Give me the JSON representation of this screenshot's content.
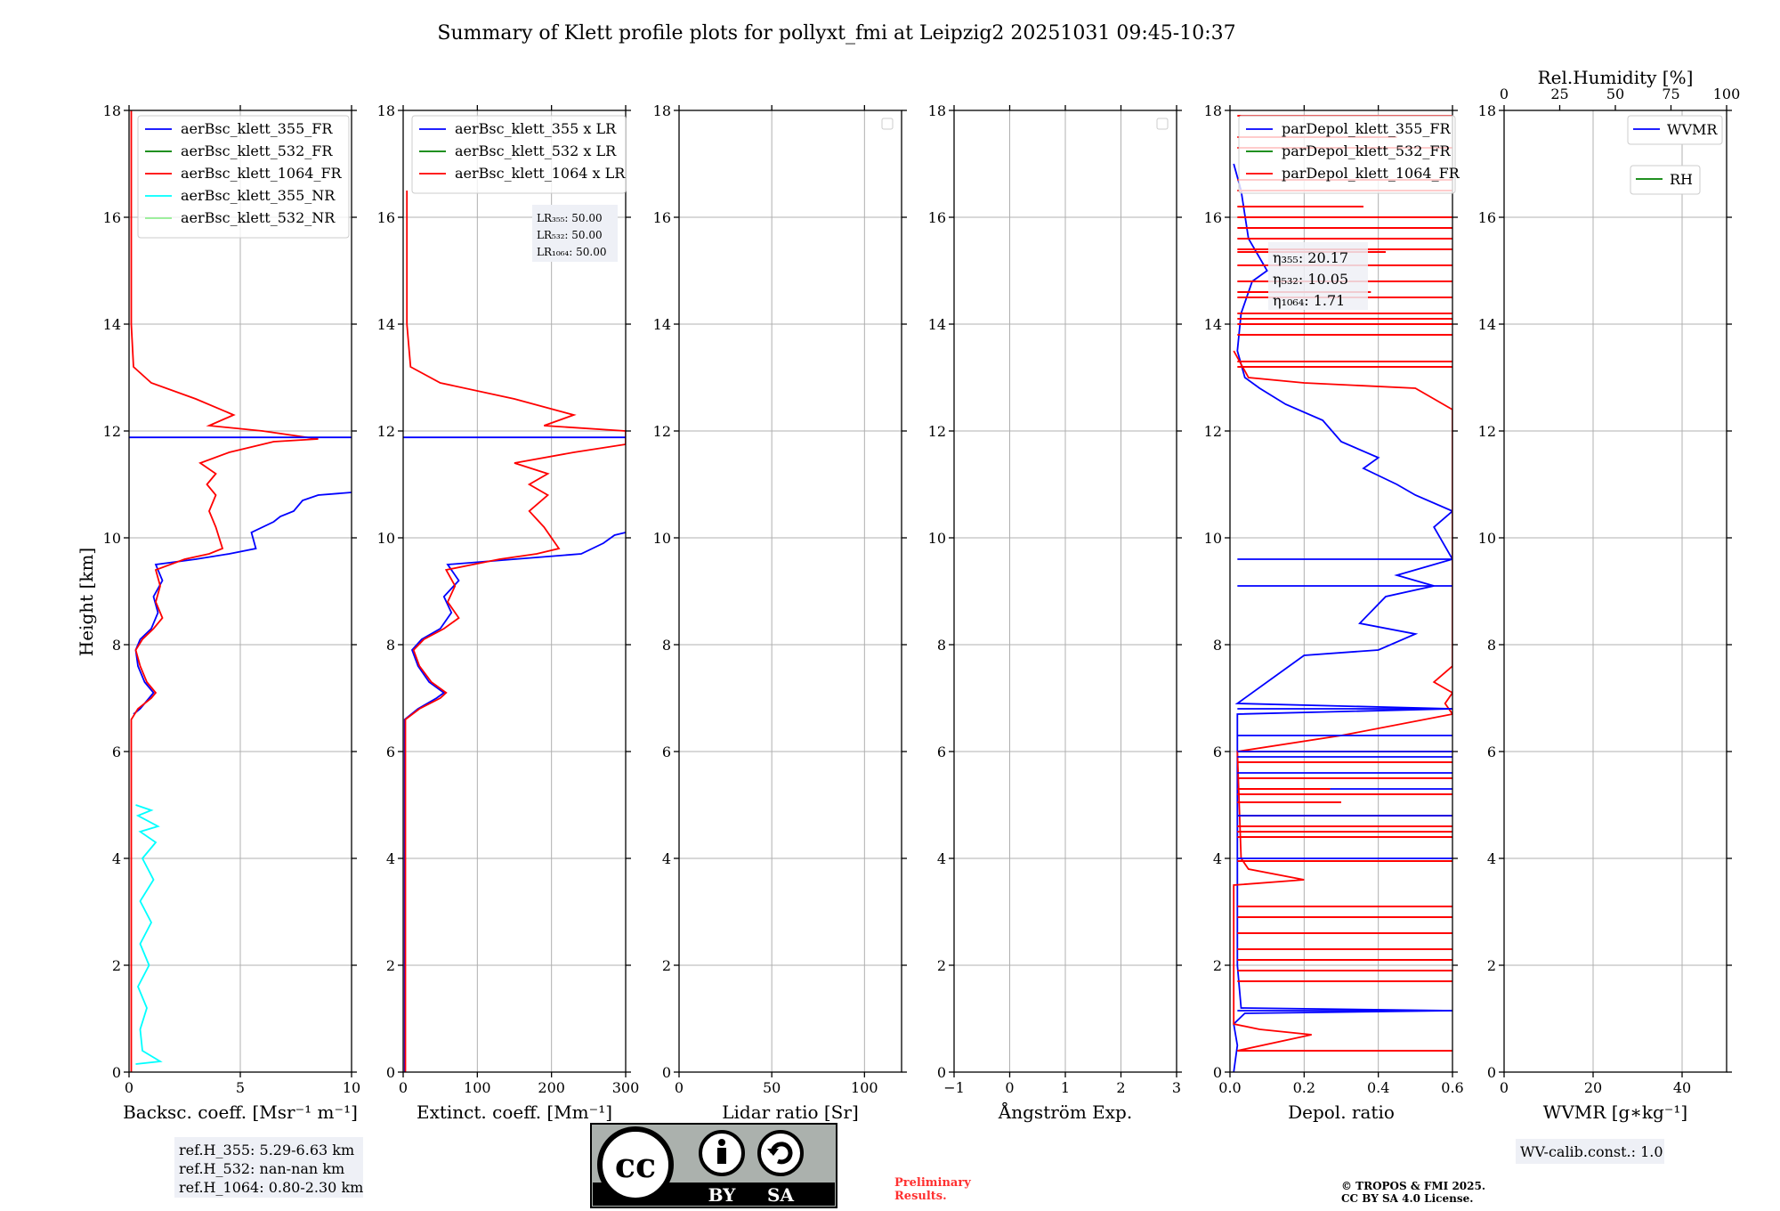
{
  "title": "Summary of Klett profile plots for pollyxt_fmi at Leipzig2 20251031 09:45-10:37",
  "ylabel": "Height [km]",
  "colors": {
    "blue": "#0000ff",
    "green": "#008000",
    "red": "#ff0000",
    "cyan": "#00ffff",
    "lightgreen": "#90ee90"
  },
  "chart_data": [
    {
      "type": "line",
      "id": "bsc",
      "xlabel": "Backsc. coeff. [Msr⁻¹ m⁻¹]",
      "xlim": [
        0,
        10
      ],
      "ylim": [
        0,
        18
      ],
      "xticks": [
        0,
        5,
        10
      ],
      "yticks": [
        0,
        2,
        4,
        6,
        8,
        10,
        12,
        14,
        16,
        18
      ],
      "legend": [
        "aerBsc_klett_355_FR",
        "aerBsc_klett_532_FR",
        "aerBsc_klett_1064_FR",
        "aerBsc_klett_355_NR",
        "aerBsc_klett_532_NR"
      ],
      "legend_colors": [
        "blue",
        "green",
        "red",
        "cyan",
        "lightgreen"
      ],
      "series": [
        {
          "name": "aerBsc_klett_355_FR",
          "color": "blue",
          "points": [
            [
              0.2,
              6.7
            ],
            [
              0.5,
              6.8
            ],
            [
              0.9,
              7.0
            ],
            [
              1.1,
              7.1
            ],
            [
              0.7,
              7.3
            ],
            [
              0.4,
              7.6
            ],
            [
              0.3,
              7.9
            ],
            [
              0.5,
              8.1
            ],
            [
              1.0,
              8.3
            ],
            [
              1.3,
              8.6
            ],
            [
              1.1,
              8.9
            ],
            [
              1.5,
              9.2
            ],
            [
              1.2,
              9.5
            ],
            [
              3.0,
              9.6
            ],
            [
              4.5,
              9.7
            ],
            [
              5.7,
              9.8
            ],
            [
              5.5,
              10.1
            ],
            [
              6.5,
              10.3
            ],
            [
              6.8,
              10.4
            ],
            [
              7.4,
              10.5
            ],
            [
              7.8,
              10.7
            ],
            [
              8.5,
              10.8
            ],
            [
              10,
              10.85
            ]
          ]
        },
        {
          "name": "aerBsc_klett_1064_FR",
          "color": "red",
          "points": [
            [
              0.1,
              0.0
            ],
            [
              0.1,
              6.6
            ],
            [
              0.4,
              6.8
            ],
            [
              1.0,
              7.0
            ],
            [
              1.2,
              7.1
            ],
            [
              0.8,
              7.3
            ],
            [
              0.5,
              7.6
            ],
            [
              0.3,
              7.9
            ],
            [
              0.6,
              8.1
            ],
            [
              1.1,
              8.3
            ],
            [
              1.5,
              8.5
            ],
            [
              1.2,
              8.8
            ],
            [
              1.4,
              9.1
            ],
            [
              1.2,
              9.4
            ],
            [
              2.5,
              9.6
            ],
            [
              3.6,
              9.7
            ],
            [
              4.2,
              9.8
            ],
            [
              3.9,
              10.2
            ],
            [
              3.6,
              10.5
            ],
            [
              3.9,
              10.8
            ],
            [
              3.5,
              11.0
            ],
            [
              3.9,
              11.2
            ],
            [
              3.2,
              11.4
            ],
            [
              4.5,
              11.6
            ],
            [
              6.5,
              11.8
            ],
            [
              8.5,
              11.85
            ],
            [
              6.0,
              12.0
            ],
            [
              3.6,
              12.1
            ],
            [
              4.7,
              12.3
            ],
            [
              3.0,
              12.6
            ],
            [
              1.0,
              12.9
            ],
            [
              0.2,
              13.2
            ],
            [
              0.1,
              14.0
            ],
            [
              0.1,
              18.0
            ]
          ]
        },
        {
          "name": "aerBsc_klett_355_FR spike",
          "color": "blue",
          "points": [
            [
              0,
              11.88
            ],
            [
              10,
              11.88
            ]
          ]
        },
        {
          "name": "aerBsc_klett_355_NR",
          "color": "cyan",
          "points": [
            [
              0.3,
              0.15
            ],
            [
              1.4,
              0.2
            ],
            [
              0.6,
              0.4
            ],
            [
              0.5,
              0.8
            ],
            [
              0.8,
              1.2
            ],
            [
              0.4,
              1.6
            ],
            [
              0.9,
              2.0
            ],
            [
              0.5,
              2.4
            ],
            [
              1.0,
              2.8
            ],
            [
              0.5,
              3.2
            ],
            [
              1.1,
              3.6
            ],
            [
              0.6,
              4.0
            ],
            [
              1.2,
              4.3
            ],
            [
              0.5,
              4.5
            ],
            [
              1.3,
              4.6
            ],
            [
              0.4,
              4.8
            ],
            [
              1.0,
              4.9
            ],
            [
              0.3,
              5.0
            ]
          ]
        }
      ]
    },
    {
      "type": "line",
      "id": "ext",
      "xlabel": "Extinct. coeff. [Mm⁻¹]",
      "xlim": [
        0,
        300
      ],
      "ylim": [
        0,
        18
      ],
      "xticks": [
        0,
        100,
        200,
        300
      ],
      "yticks": [
        0,
        2,
        4,
        6,
        8,
        10,
        12,
        14,
        16,
        18
      ],
      "legend": [
        "aerBsc_klett_355 x LR",
        "aerBsc_klett_532 x LR",
        "aerBsc_klett_1064 x LR"
      ],
      "legend_colors": [
        "blue",
        "green",
        "red"
      ],
      "lr_labels": [
        "LR₃₅₅: 50.00",
        "LR₅₃₂: 50.00",
        "LR₁₀₆₄: 50.00"
      ],
      "series": [
        {
          "name": "aerBsc_klett_355 x LR",
          "color": "blue",
          "points": [
            [
              2,
              0
            ],
            [
              2,
              6.6
            ],
            [
              20,
              6.8
            ],
            [
              45,
              7.0
            ],
            [
              55,
              7.1
            ],
            [
              35,
              7.3
            ],
            [
              20,
              7.6
            ],
            [
              12,
              7.9
            ],
            [
              25,
              8.1
            ],
            [
              50,
              8.3
            ],
            [
              65,
              8.6
            ],
            [
              55,
              8.9
            ],
            [
              75,
              9.2
            ],
            [
              60,
              9.5
            ],
            [
              150,
              9.6
            ],
            [
              240,
              9.7
            ],
            [
              270,
              9.9
            ],
            [
              285,
              10.05
            ],
            [
              300,
              10.1
            ]
          ]
        },
        {
          "name": "aerBsc_klett_1064 x LR",
          "color": "red",
          "points": [
            [
              3,
              0
            ],
            [
              3,
              6.6
            ],
            [
              22,
              6.8
            ],
            [
              50,
              7.0
            ],
            [
              58,
              7.1
            ],
            [
              38,
              7.3
            ],
            [
              22,
              7.6
            ],
            [
              14,
              7.9
            ],
            [
              28,
              8.1
            ],
            [
              55,
              8.3
            ],
            [
              75,
              8.5
            ],
            [
              60,
              8.8
            ],
            [
              70,
              9.1
            ],
            [
              58,
              9.4
            ],
            [
              130,
              9.6
            ],
            [
              180,
              9.7
            ],
            [
              210,
              9.8
            ],
            [
              190,
              10.2
            ],
            [
              170,
              10.5
            ],
            [
              195,
              10.8
            ],
            [
              170,
              11.0
            ],
            [
              195,
              11.2
            ],
            [
              150,
              11.4
            ],
            [
              230,
              11.6
            ],
            [
              300,
              11.75
            ],
            [
              300,
              12.0
            ],
            [
              190,
              12.1
            ],
            [
              230,
              12.3
            ],
            [
              150,
              12.6
            ],
            [
              50,
              12.9
            ],
            [
              10,
              13.2
            ],
            [
              5,
              14.0
            ],
            [
              5,
              16.5
            ]
          ]
        },
        {
          "name": "spike",
          "color": "blue",
          "points": [
            [
              0,
              11.88
            ],
            [
              300,
              11.88
            ]
          ]
        }
      ]
    },
    {
      "type": "line",
      "id": "lr",
      "xlabel": "Lidar ratio [Sr]",
      "xlim": [
        0,
        120
      ],
      "ylim": [
        0,
        18
      ],
      "xticks": [
        0,
        50,
        100
      ],
      "yticks": [
        0,
        2,
        4,
        6,
        8,
        10,
        12,
        14,
        16,
        18
      ],
      "series": []
    },
    {
      "type": "line",
      "id": "ang",
      "xlabel": "Ångström Exp.",
      "xlim": [
        -1,
        3
      ],
      "ylim": [
        0,
        18
      ],
      "xticks": [
        -1,
        0,
        1,
        2,
        3
      ],
      "yticks": [
        0,
        2,
        4,
        6,
        8,
        10,
        12,
        14,
        16,
        18
      ],
      "series": []
    },
    {
      "type": "line",
      "id": "depol",
      "xlabel": "Depol. ratio",
      "xlim": [
        0,
        0.6
      ],
      "ylim": [
        0,
        18
      ],
      "xticks": [
        0.0,
        0.2,
        0.4,
        0.6
      ],
      "xtick_labels": [
        "0.0",
        "0.2",
        "0.4",
        "0.6"
      ],
      "yticks": [
        0,
        2,
        4,
        6,
        8,
        10,
        12,
        14,
        16,
        18
      ],
      "legend": [
        "parDepol_klett_355_FR",
        "parDepol_klett_532_FR",
        "parDepol_klett_1064_FR"
      ],
      "legend_colors": [
        "blue",
        "green",
        "red"
      ],
      "eta_labels": [
        "η₃₅₅: 20.17",
        "η₅₃₂: 10.05",
        "η₁₀₆₄: 1.71"
      ],
      "series": [
        {
          "name": "parDepol_klett_355_FR",
          "color": "blue",
          "points": [
            [
              0.01,
              0.0
            ],
            [
              0.02,
              0.5
            ],
            [
              0.01,
              0.9
            ],
            [
              0.04,
              1.1
            ],
            [
              0.6,
              1.15
            ],
            [
              0.03,
              1.2
            ],
            [
              0.02,
              2.0
            ],
            [
              0.02,
              6.7
            ],
            [
              0.6,
              6.8
            ],
            [
              0.02,
              6.9
            ],
            [
              0.2,
              7.8
            ],
            [
              0.4,
              7.9
            ],
            [
              0.5,
              8.2
            ],
            [
              0.35,
              8.4
            ],
            [
              0.42,
              8.9
            ],
            [
              0.55,
              9.1
            ],
            [
              0.45,
              9.3
            ],
            [
              0.6,
              9.6
            ],
            [
              0.55,
              10.2
            ],
            [
              0.6,
              10.5
            ],
            [
              0.5,
              10.8
            ],
            [
              0.45,
              11.0
            ],
            [
              0.36,
              11.3
            ],
            [
              0.4,
              11.5
            ],
            [
              0.3,
              11.8
            ],
            [
              0.25,
              12.2
            ],
            [
              0.15,
              12.5
            ],
            [
              0.08,
              12.8
            ],
            [
              0.04,
              13.0
            ],
            [
              0.02,
              13.5
            ],
            [
              0.03,
              14.2
            ],
            [
              0.06,
              14.8
            ],
            [
              0.1,
              15.0
            ],
            [
              0.05,
              15.6
            ],
            [
              0.03,
              16.5
            ],
            [
              0.01,
              17.0
            ]
          ]
        },
        {
          "name": "parDepol_klett_1064_FR",
          "color": "red",
          "points": [
            [
              0.02,
              0.4
            ],
            [
              0.22,
              0.7
            ],
            [
              0.08,
              0.8
            ],
            [
              0.01,
              0.9
            ],
            [
              0.01,
              3.5
            ],
            [
              0.2,
              3.6
            ],
            [
              0.05,
              3.8
            ],
            [
              0.03,
              4.0
            ],
            [
              0.02,
              6.0
            ],
            [
              0.3,
              6.3
            ],
            [
              0.6,
              6.7
            ],
            [
              0.58,
              6.9
            ],
            [
              0.6,
              7.1
            ],
            [
              0.55,
              7.3
            ],
            [
              0.6,
              7.6
            ],
            [
              0.6,
              12.4
            ],
            [
              0.55,
              12.6
            ],
            [
              0.5,
              12.8
            ],
            [
              0.2,
              12.9
            ],
            [
              0.05,
              13.0
            ],
            [
              0.01,
              13.5
            ]
          ]
        }
      ],
      "hlines_blue": [
        1.15,
        4.0,
        4.8,
        5.3,
        5.6,
        5.9,
        6.0,
        6.3,
        6.8,
        9.1,
        9.6
      ],
      "hlines_red": [
        0.4,
        1.7,
        1.9,
        2.1,
        2.3,
        2.6,
        2.9,
        3.1,
        3.95,
        4.4,
        4.5,
        4.6,
        4.8,
        5.2,
        5.5,
        5.8,
        6.0,
        13.2,
        13.3,
        13.8,
        14.0,
        14.1,
        14.2,
        14.5,
        14.8,
        15.1,
        15.4,
        15.6,
        15.8,
        16.0,
        16.5,
        16.7,
        17.3,
        17.9
      ],
      "hlines_red_partial": [
        [
          0.27,
          5.3
        ],
        [
          0.3,
          5.05
        ],
        [
          0.38,
          14.6
        ],
        [
          0.42,
          15.35
        ],
        [
          0.36,
          16.2
        ],
        [
          0.45,
          17.5
        ]
      ]
    },
    {
      "type": "line",
      "id": "wv",
      "xlabel": "WVMR [g∗kg⁻¹]",
      "top_xlabel": "Rel.Humidity [%]",
      "xlim": [
        0,
        50
      ],
      "ylim": [
        0,
        18
      ],
      "xticks": [
        0,
        20,
        40
      ],
      "top_xticks": [
        0,
        25,
        50,
        75,
        100
      ],
      "yticks": [
        0,
        2,
        4,
        6,
        8,
        10,
        12,
        14,
        16,
        18
      ],
      "legend": [
        "WVMR",
        "RH"
      ],
      "legend_colors": [
        "blue",
        "green"
      ],
      "series": []
    }
  ],
  "notes": {
    "refh": [
      "ref.H_355: 5.29-6.63 km",
      "ref.H_532: nan-nan km",
      "ref.H_1064: 0.80-2.30 km"
    ],
    "wv_calib": "WV-calib.const.: 1.0",
    "preliminary": [
      "Preliminary",
      "Results."
    ],
    "copyright": [
      "© TROPOS & FMI 2025.",
      "CC BY SA 4.0 License."
    ],
    "license_badge": {
      "cc": "cc",
      "by": "BY",
      "sa": "SA"
    }
  }
}
